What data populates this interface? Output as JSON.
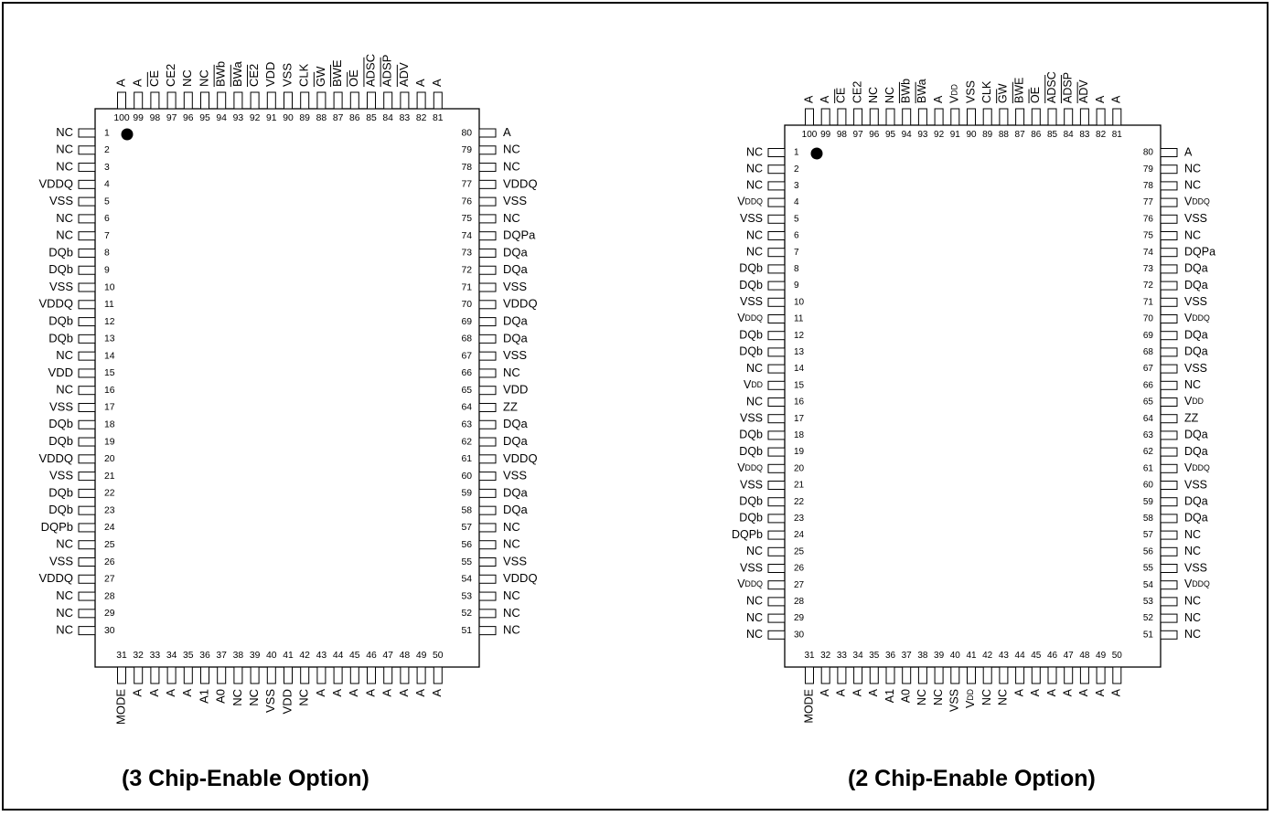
{
  "diagrams": [
    {
      "caption": "(3 Chip-Enable Option)",
      "style": "left",
      "left_pins": [
        "NC",
        "NC",
        "NC",
        "VDDQ",
        "VSS",
        "NC",
        "NC",
        "DQb",
        "DQb",
        "VSS",
        "VDDQ",
        "DQb",
        "DQb",
        "NC",
        "VDD",
        "NC",
        "VSS",
        "DQb",
        "DQb",
        "VDDQ",
        "VSS",
        "DQb",
        "DQb",
        "DQPb",
        "NC",
        "VSS",
        "VDDQ",
        "NC",
        "NC",
        "NC"
      ],
      "right_pins": [
        "A",
        "NC",
        "NC",
        "VDDQ",
        "VSS",
        "NC",
        "DQPa",
        "DQa",
        "DQa",
        "VSS",
        "VDDQ",
        "DQa",
        "DQa",
        "VSS",
        "NC",
        "VDD",
        "ZZ",
        "DQa",
        "DQa",
        "VDDQ",
        "VSS",
        "DQa",
        "DQa",
        "NC",
        "NC",
        "VSS",
        "VDDQ",
        "NC",
        "NC",
        "NC"
      ],
      "bottom_pins": [
        "MODE",
        "A",
        "A",
        "A",
        "A",
        "A1",
        "A0",
        "NC",
        "NC",
        "VSS",
        "VDD",
        "NC",
        "A",
        "A",
        "A",
        "A",
        "A",
        "A",
        "A",
        "A"
      ],
      "top_pins": [
        "A",
        "A",
        "CE",
        "CE2",
        "NC",
        "NC",
        "BWb",
        "BWa",
        "CE2",
        "VDD",
        "VSS",
        "CLK",
        "GW",
        "BWE",
        "OE",
        "ADSC",
        "ADSP",
        "ADV",
        "A",
        "A"
      ],
      "top_overbar": [
        false,
        false,
        true,
        false,
        false,
        false,
        true,
        true,
        true,
        false,
        false,
        false,
        true,
        true,
        true,
        true,
        true,
        true,
        false,
        false
      ]
    },
    {
      "caption": "(2 Chip-Enable Option)",
      "style": "right",
      "left_pins": [
        "NC",
        "NC",
        "NC",
        "VDDQ",
        "VSS",
        "NC",
        "NC",
        "DQb",
        "DQb",
        "VSS",
        "VDDQ",
        "DQb",
        "DQb",
        "NC",
        "VDD",
        "NC",
        "VSS",
        "DQb",
        "DQb",
        "VDDQ",
        "VSS",
        "DQb",
        "DQb",
        "DQPb",
        "NC",
        "VSS",
        "VDDQ",
        "NC",
        "NC",
        "NC"
      ],
      "right_pins": [
        "A",
        "NC",
        "NC",
        "VDDQ",
        "VSS",
        "NC",
        "DQPa",
        "DQa",
        "DQa",
        "VSS",
        "VDDQ",
        "DQa",
        "DQa",
        "VSS",
        "NC",
        "VDD",
        "ZZ",
        "DQa",
        "DQa",
        "VDDQ",
        "VSS",
        "DQa",
        "DQa",
        "NC",
        "NC",
        "VSS",
        "VDDQ",
        "NC",
        "NC",
        "NC"
      ],
      "bottom_pins": [
        "MODE",
        "A",
        "A",
        "A",
        "A",
        "A1",
        "A0",
        "NC",
        "NC",
        "VSS",
        "VDD",
        "NC",
        "NC",
        "A",
        "A",
        "A",
        "A",
        "A",
        "A",
        "A"
      ],
      "top_pins": [
        "A",
        "A",
        "CE",
        "CE2",
        "NC",
        "NC",
        "BWb",
        "BWa",
        "A",
        "VDD",
        "VSS",
        "CLK",
        "GW",
        "BWE",
        "OE",
        "ADSC",
        "ADSP",
        "ADV",
        "A",
        "A"
      ],
      "top_overbar": [
        false,
        false,
        true,
        false,
        false,
        false,
        true,
        true,
        false,
        false,
        false,
        false,
        true,
        true,
        true,
        true,
        true,
        true,
        false,
        false
      ]
    }
  ]
}
